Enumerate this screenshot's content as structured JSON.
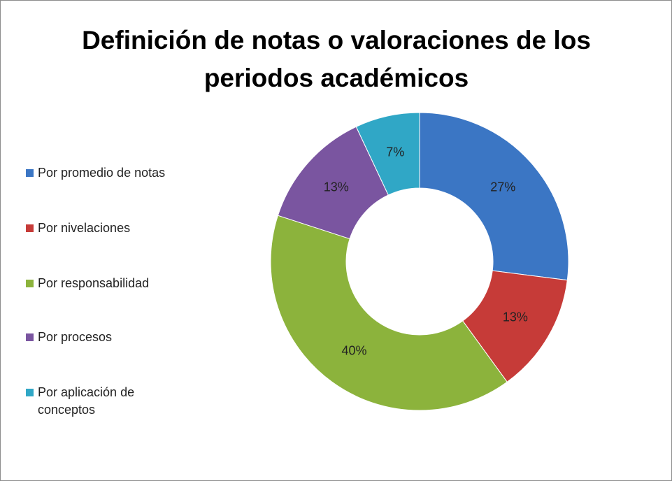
{
  "chart_data": {
    "type": "donut",
    "title": "Definición de notas o valoraciones de los periodos académicos",
    "categories": [
      "Por promedio de notas",
      "Por nivelaciones",
      "Por responsabilidad",
      "Por procesos",
      "Por aplicación de conceptos"
    ],
    "values": [
      27,
      13,
      40,
      13,
      7
    ],
    "value_labels": [
      "27%",
      "13%",
      "40%",
      "13%",
      "7%"
    ],
    "colors": [
      "#3b76c4",
      "#c63b38",
      "#8cb33c",
      "#7a55a0",
      "#30a7c6"
    ],
    "legend": "left"
  }
}
